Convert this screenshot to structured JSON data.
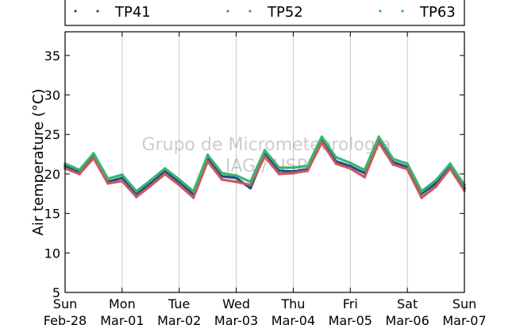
{
  "chart_data": {
    "type": "line",
    "title": "",
    "ylabel": "Air temperature (°C)",
    "xlabel": "",
    "xlim": [
      "2021-02-28T00:00",
      "2021-03-07T00:00"
    ],
    "ylim": [
      5,
      38
    ],
    "yticks": [
      5,
      10,
      15,
      20,
      25,
      30,
      35
    ],
    "grid": "vertical at day ticks",
    "legend_position": "top",
    "xticks": [
      {
        "day": "Sun",
        "date": "Feb-28"
      },
      {
        "day": "Mon",
        "date": "Mar-01"
      },
      {
        "day": "Tue",
        "date": "Mar-02"
      },
      {
        "day": "Wed",
        "date": "Mar-03"
      },
      {
        "day": "Thu",
        "date": "Mar-04"
      },
      {
        "day": "Fri",
        "date": "Mar-05"
      },
      {
        "day": "Sat",
        "date": "Mar-06"
      },
      {
        "day": "Sun",
        "date": "Mar-07"
      }
    ],
    "watermark": [
      "Grupo de Micrometeorologia",
      "IAG / USP"
    ],
    "series": [
      {
        "name": "TP41",
        "color": "#1f4e8c",
        "x": [
          "2021-02-28T00:00",
          "2021-02-28T06:00",
          "2021-02-28T12:00",
          "2021-02-28T18:00",
          "2021-03-01T00:00",
          "2021-03-01T06:00",
          "2021-03-01T12:00",
          "2021-03-01T18:00",
          "2021-03-02T00:00",
          "2021-03-02T06:00",
          "2021-03-02T12:00",
          "2021-03-02T18:00",
          "2021-03-03T00:00",
          "2021-03-03T06:00",
          "2021-03-03T12:00",
          "2021-03-03T18:00",
          "2021-03-04T00:00",
          "2021-03-04T06:00",
          "2021-03-04T12:00",
          "2021-03-04T18:00",
          "2021-03-05T00:00",
          "2021-03-05T06:00",
          "2021-03-05T12:00",
          "2021-03-05T18:00",
          "2021-03-06T00:00",
          "2021-03-06T06:00",
          "2021-03-06T12:00",
          "2021-03-06T18:00",
          "2021-03-07T00:00"
        ],
        "y": [
          21.0,
          20.2,
          22.3,
          19.0,
          19.5,
          17.5,
          18.8,
          20.3,
          19.0,
          17.4,
          22.0,
          19.7,
          19.5,
          18.2,
          22.5,
          20.4,
          20.3,
          20.6,
          24.2,
          21.6,
          21.0,
          20.1,
          24.3,
          21.5,
          20.9,
          17.5,
          18.8,
          21.0,
          18.2
        ]
      },
      {
        "name": "TP52",
        "color": "#c85a5a",
        "x": [
          "2021-02-28T00:00",
          "2021-02-28T06:00",
          "2021-02-28T12:00",
          "2021-02-28T18:00",
          "2021-03-01T00:00",
          "2021-03-01T06:00",
          "2021-03-01T12:00",
          "2021-03-01T18:00",
          "2021-03-02T00:00",
          "2021-03-02T06:00",
          "2021-03-02T12:00",
          "2021-03-02T18:00",
          "2021-03-03T00:00",
          "2021-03-03T06:00",
          "2021-03-03T12:00",
          "2021-03-03T18:00",
          "2021-03-04T00:00",
          "2021-03-04T06:00",
          "2021-03-04T12:00",
          "2021-03-04T18:00",
          "2021-03-05T00:00",
          "2021-03-05T06:00",
          "2021-03-05T12:00",
          "2021-03-05T18:00",
          "2021-03-06T00:00",
          "2021-03-06T06:00",
          "2021-03-06T12:00",
          "2021-03-06T18:00",
          "2021-03-07T00:00"
        ],
        "y": [
          20.7,
          20.0,
          22.0,
          18.8,
          19.1,
          17.1,
          18.5,
          20.0,
          18.6,
          17.0,
          21.6,
          19.3,
          19.0,
          18.6,
          22.2,
          20.0,
          20.1,
          20.4,
          24.0,
          21.3,
          20.7,
          19.6,
          24.0,
          21.2,
          20.6,
          17.0,
          18.4,
          20.7,
          17.9
        ]
      },
      {
        "name": "TP63",
        "color": "#3cb371",
        "x": [
          "2021-02-28T00:00",
          "2021-02-28T06:00",
          "2021-02-28T12:00",
          "2021-02-28T18:00",
          "2021-03-01T00:00",
          "2021-03-01T06:00",
          "2021-03-01T12:00",
          "2021-03-01T18:00",
          "2021-03-02T00:00",
          "2021-03-02T06:00",
          "2021-03-02T12:00",
          "2021-03-02T18:00",
          "2021-03-03T00:00",
          "2021-03-03T06:00",
          "2021-03-03T12:00",
          "2021-03-03T18:00",
          "2021-03-04T00:00",
          "2021-03-04T06:00",
          "2021-03-04T12:00",
          "2021-03-04T18:00",
          "2021-03-05T00:00",
          "2021-03-05T06:00",
          "2021-03-05T12:00",
          "2021-03-05T18:00",
          "2021-03-06T00:00",
          "2021-03-06T06:00",
          "2021-03-06T12:00",
          "2021-03-06T18:00",
          "2021-03-07T00:00"
        ],
        "y": [
          21.3,
          20.5,
          22.6,
          19.4,
          19.9,
          17.8,
          19.2,
          20.7,
          19.3,
          17.8,
          22.4,
          20.1,
          19.8,
          19.0,
          23.0,
          20.8,
          20.8,
          21.0,
          24.7,
          22.1,
          21.4,
          20.5,
          24.7,
          21.9,
          21.3,
          17.8,
          19.2,
          21.3,
          18.6
        ]
      }
    ]
  }
}
